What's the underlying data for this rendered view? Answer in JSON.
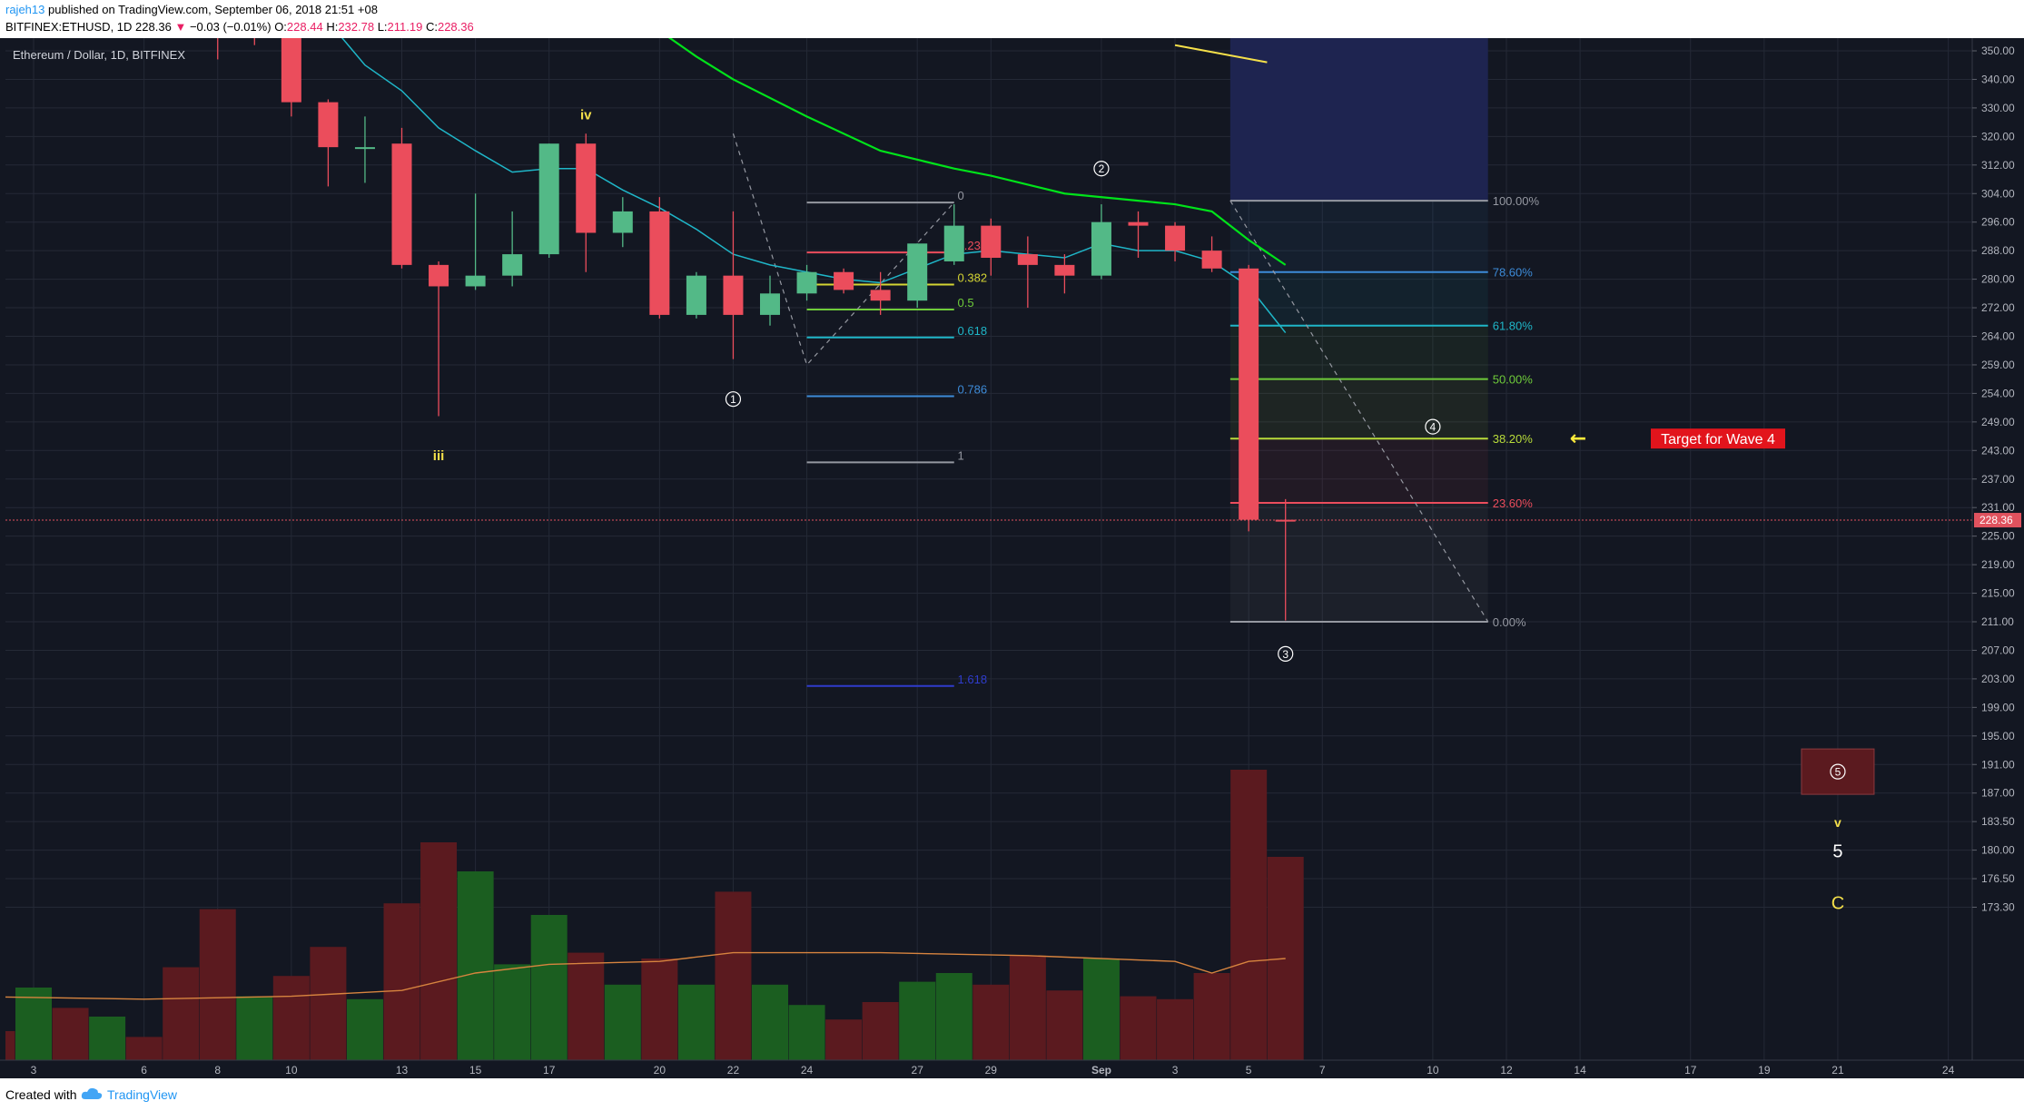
{
  "header": {
    "username": "rajeh13",
    "published": "published on TradingView.com, September 06, 2018 21:51 +08",
    "symbol": "BITFINEX:ETHUSD, 1D",
    "last": "228.36",
    "change_arrow": "▼",
    "change": "−0.03 (−0.01%)",
    "open_label": "O:",
    "open": "228.44",
    "high_label": "H:",
    "high": "232.78",
    "low_label": "L:",
    "low": "211.19",
    "close_label": "C:",
    "close": "228.36"
  },
  "footer": {
    "created": "Created with",
    "brand": "TradingView",
    "logo_icon": "tradingview-cloud-icon"
  },
  "colors": {
    "background": "#131722",
    "grid": "#242936",
    "up": "#53b987",
    "down": "#eb4d5c",
    "vol_up": "#1b5e20",
    "vol_down": "#5b1a1f",
    "ema_green": "#00e31a",
    "ema_cyan": "#1fb6c8",
    "vol_ma": "#d7843f",
    "price_line": "#e0525e",
    "axis_text": "#b2b5be",
    "label_yellow": "#f5e04a",
    "target_red": "#e2141c"
  },
  "chart_data": {
    "type": "candlestick",
    "title": "Ethereum / Dollar, 1D, BITFINEX",
    "current_price": 228.36,
    "y_axis_ticks": [
      "350.00",
      "340.00",
      "330.00",
      "320.00",
      "312.00",
      "304.00",
      "296.00",
      "288.00",
      "280.00",
      "272.00",
      "264.00",
      "259.00",
      "254.00",
      "249.00",
      "243.00",
      "237.00",
      "231.00",
      "225.00",
      "219.00",
      "215.00",
      "211.00",
      "207.00",
      "203.00",
      "199.00",
      "195.00",
      "191.00",
      "187.00",
      "183.50",
      "180.00",
      "176.50",
      "173.30"
    ],
    "y_axis_values": [
      350,
      340,
      330,
      320,
      312,
      304,
      296,
      288,
      280,
      272,
      264,
      259,
      254,
      249,
      243,
      237,
      231,
      225,
      219,
      215,
      211,
      207,
      203,
      199,
      195,
      191,
      187,
      183.5,
      180,
      176.5,
      173.3
    ],
    "x_axis": [
      {
        "label": "3",
        "day": 3
      },
      {
        "label": "6",
        "day": 6
      },
      {
        "label": "8",
        "day": 8
      },
      {
        "label": "10",
        "day": 10
      },
      {
        "label": "13",
        "day": 13
      },
      {
        "label": "15",
        "day": 15
      },
      {
        "label": "17",
        "day": 17
      },
      {
        "label": "20",
        "day": 20
      },
      {
        "label": "22",
        "day": 22
      },
      {
        "label": "24",
        "day": 24
      },
      {
        "label": "27",
        "day": 27
      },
      {
        "label": "29",
        "day": 29
      },
      {
        "label": "Sep",
        "day": 32
      },
      {
        "label": "3",
        "day": 34
      },
      {
        "label": "5",
        "day": 36
      },
      {
        "label": "7",
        "day": 38
      },
      {
        "label": "10",
        "day": 41
      },
      {
        "label": "12",
        "day": 43
      },
      {
        "label": "14",
        "day": 45
      },
      {
        "label": "17",
        "day": 48
      },
      {
        "label": "19",
        "day": 50
      },
      {
        "label": "21",
        "day": 52
      },
      {
        "label": "24",
        "day": 55
      }
    ],
    "candles": [
      {
        "day": 8,
        "o": 362,
        "h": 366,
        "l": 347,
        "c": 360
      },
      {
        "day": 9,
        "o": 363,
        "h": 366,
        "l": 352,
        "c": 362
      },
      {
        "day": 10,
        "o": 358,
        "h": 362,
        "l": 327,
        "c": 332
      },
      {
        "day": 11,
        "o": 332,
        "h": 333,
        "l": 306,
        "c": 317
      },
      {
        "day": 12,
        "o": 317,
        "h": 327,
        "l": 307,
        "c": 317
      },
      {
        "day": 13,
        "o": 318,
        "h": 323,
        "l": 283,
        "c": 284
      },
      {
        "day": 14,
        "o": 284,
        "h": 285,
        "l": 250,
        "c": 278
      },
      {
        "day": 15,
        "o": 278,
        "h": 304,
        "l": 277,
        "c": 281
      },
      {
        "day": 16,
        "o": 281,
        "h": 299,
        "l": 278,
        "c": 287
      },
      {
        "day": 17,
        "o": 287,
        "h": 318,
        "l": 286,
        "c": 318
      },
      {
        "day": 18,
        "o": 318,
        "h": 321,
        "l": 282,
        "c": 293
      },
      {
        "day": 19,
        "o": 293,
        "h": 303,
        "l": 289,
        "c": 299
      },
      {
        "day": 20,
        "o": 299,
        "h": 303,
        "l": 269,
        "c": 270
      },
      {
        "day": 21,
        "o": 270,
        "h": 282,
        "l": 269,
        "c": 281
      },
      {
        "day": 22,
        "o": 281,
        "h": 299,
        "l": 260,
        "c": 270
      },
      {
        "day": 23,
        "o": 270,
        "h": 281,
        "l": 267,
        "c": 276
      },
      {
        "day": 24,
        "o": 276,
        "h": 284,
        "l": 274,
        "c": 282
      },
      {
        "day": 25,
        "o": 282,
        "h": 283,
        "l": 276,
        "c": 277
      },
      {
        "day": 26,
        "o": 277,
        "h": 282,
        "l": 270,
        "c": 274
      },
      {
        "day": 27,
        "o": 274,
        "h": 290,
        "l": 272,
        "c": 290
      },
      {
        "day": 28,
        "o": 285,
        "h": 301,
        "l": 284,
        "c": 295
      },
      {
        "day": 29,
        "o": 295,
        "h": 297,
        "l": 281,
        "c": 286
      },
      {
        "day": 30,
        "o": 287,
        "h": 292,
        "l": 272,
        "c": 284
      },
      {
        "day": 31,
        "o": 284,
        "h": 287,
        "l": 276,
        "c": 281
      },
      {
        "day": 32,
        "o": 281,
        "h": 301,
        "l": 280,
        "c": 296
      },
      {
        "day": 33,
        "o": 296,
        "h": 299,
        "l": 286,
        "c": 295
      },
      {
        "day": 34,
        "o": 295,
        "h": 296,
        "l": 285,
        "c": 288
      },
      {
        "day": 35,
        "o": 288,
        "h": 292,
        "l": 282,
        "c": 283
      },
      {
        "day": 36,
        "o": 283,
        "h": 284,
        "l": 226,
        "c": 228.44
      },
      {
        "day": 37,
        "o": 228.44,
        "h": 232.78,
        "l": 211.19,
        "c": 228.36
      }
    ],
    "volume": [
      {
        "day": 2,
        "v": 10,
        "up": false
      },
      {
        "day": 3,
        "v": 25,
        "up": true
      },
      {
        "day": 4,
        "v": 18,
        "up": false
      },
      {
        "day": 5,
        "v": 15,
        "up": true
      },
      {
        "day": 6,
        "v": 8,
        "up": false
      },
      {
        "day": 7,
        "v": 32,
        "up": false
      },
      {
        "day": 8,
        "v": 52,
        "up": false
      },
      {
        "day": 9,
        "v": 22,
        "up": true
      },
      {
        "day": 10,
        "v": 29,
        "up": false
      },
      {
        "day": 11,
        "v": 39,
        "up": false
      },
      {
        "day": 12,
        "v": 21,
        "up": true
      },
      {
        "day": 13,
        "v": 54,
        "up": false
      },
      {
        "day": 14,
        "v": 75,
        "up": false
      },
      {
        "day": 15,
        "v": 65,
        "up": true
      },
      {
        "day": 16,
        "v": 33,
        "up": true
      },
      {
        "day": 17,
        "v": 50,
        "up": true
      },
      {
        "day": 18,
        "v": 37,
        "up": false
      },
      {
        "day": 19,
        "v": 26,
        "up": true
      },
      {
        "day": 20,
        "v": 35,
        "up": false
      },
      {
        "day": 21,
        "v": 26,
        "up": true
      },
      {
        "day": 22,
        "v": 58,
        "up": false
      },
      {
        "day": 23,
        "v": 26,
        "up": true
      },
      {
        "day": 24,
        "v": 19,
        "up": true
      },
      {
        "day": 25,
        "v": 14,
        "up": false
      },
      {
        "day": 26,
        "v": 20,
        "up": false
      },
      {
        "day": 27,
        "v": 27,
        "up": true
      },
      {
        "day": 28,
        "v": 30,
        "up": true
      },
      {
        "day": 29,
        "v": 26,
        "up": false
      },
      {
        "day": 30,
        "v": 36,
        "up": false
      },
      {
        "day": 31,
        "v": 24,
        "up": false
      },
      {
        "day": 32,
        "v": 35,
        "up": true
      },
      {
        "day": 33,
        "v": 22,
        "up": false
      },
      {
        "day": 34,
        "v": 21,
        "up": false
      },
      {
        "day": 35,
        "v": 30,
        "up": false
      },
      {
        "day": 36,
        "v": 100,
        "up": false
      },
      {
        "day": 37,
        "v": 70,
        "up": false
      }
    ],
    "vol_ma": [
      [
        1,
        22
      ],
      [
        6,
        21
      ],
      [
        10,
        22
      ],
      [
        13,
        24
      ],
      [
        15,
        30
      ],
      [
        17,
        33
      ],
      [
        20,
        34
      ],
      [
        22,
        37
      ],
      [
        26,
        37
      ],
      [
        30,
        36
      ],
      [
        34,
        34
      ],
      [
        35,
        30
      ],
      [
        36,
        34
      ],
      [
        37,
        35
      ]
    ],
    "ema_green": [
      [
        18.5,
        378
      ],
      [
        19.5,
        365
      ],
      [
        20,
        357
      ],
      [
        21,
        348
      ],
      [
        22,
        340
      ],
      [
        24,
        327
      ],
      [
        26,
        316
      ],
      [
        28,
        311
      ],
      [
        29,
        309
      ],
      [
        31,
        304
      ],
      [
        33,
        302
      ],
      [
        34,
        301
      ],
      [
        35,
        299
      ],
      [
        36,
        291
      ],
      [
        37,
        284
      ]
    ],
    "ema_cyan": [
      [
        10.5,
        368
      ],
      [
        12,
        345
      ],
      [
        13,
        336
      ],
      [
        14,
        323
      ],
      [
        15,
        316
      ],
      [
        16,
        310
      ],
      [
        17,
        311
      ],
      [
        18,
        311
      ],
      [
        19,
        305
      ],
      [
        20,
        300
      ],
      [
        21,
        294
      ],
      [
        22,
        287
      ],
      [
        23,
        284
      ],
      [
        24,
        282
      ],
      [
        25,
        280
      ],
      [
        26,
        279
      ],
      [
        27,
        283
      ],
      [
        28,
        287
      ],
      [
        29,
        288
      ],
      [
        30,
        287
      ],
      [
        31,
        286
      ],
      [
        32,
        290
      ],
      [
        33,
        288
      ],
      [
        34,
        288
      ],
      [
        35,
        285
      ],
      [
        36,
        278
      ],
      [
        37,
        265
      ]
    ],
    "fib_retracement": {
      "levels": [
        {
          "label": "0",
          "value": 301.5,
          "color": "#9598a1"
        },
        {
          "label": "0.236",
          "value": 287.5,
          "color": "#eb4d5c"
        },
        {
          "label": "0.382",
          "value": 278.5,
          "color": "#d4d433"
        },
        {
          "label": "0.5",
          "value": 271.5,
          "color": "#6fcc3a"
        },
        {
          "label": "0.618",
          "value": 263.8,
          "color": "#1fb6c8"
        },
        {
          "label": "0.786",
          "value": 253.5,
          "color": "#3d8bd8"
        },
        {
          "label": "1",
          "value": 240.5,
          "color": "#9598a1"
        },
        {
          "label": "1.618",
          "value": 202,
          "color": "#2f3ccc"
        }
      ],
      "from_day": 24,
      "to_day": 28
    },
    "fib_right": {
      "levels": [
        {
          "label": "100.00%",
          "value": 302,
          "color": "#9598a1"
        },
        {
          "label": "78.60%",
          "value": 282,
          "color": "#3d8bd8"
        },
        {
          "label": "61.80%",
          "value": 267,
          "color": "#1fb6c8"
        },
        {
          "label": "50.00%",
          "value": 256.5,
          "color": "#6fcc3a"
        },
        {
          "label": "38.20%",
          "value": 245.5,
          "color": "#b8dc3a"
        },
        {
          "label": "23.60%",
          "value": 232,
          "color": "#eb4d5c"
        },
        {
          "label": "0.00%",
          "value": 211,
          "color": "#9598a1"
        }
      ],
      "from_day": 35.5,
      "to_day": 42.5
    },
    "dashed_lines": [
      [
        [
          22,
          321
        ],
        [
          24,
          259
        ],
        [
          28,
          301.5
        ]
      ],
      [
        [
          35.5,
          302
        ],
        [
          42.5,
          211
        ]
      ]
    ],
    "wave_labels": [
      {
        "text": "iv",
        "day": 18,
        "price": 326,
        "color": "#f5e04a",
        "circled": false
      },
      {
        "text": "iii",
        "day": 14,
        "price": 241,
        "color": "#f5e04a",
        "circled": false
      },
      {
        "text": "1",
        "day": 22,
        "price": 253,
        "color": "#ffffff",
        "circled": true
      },
      {
        "text": "2",
        "day": 32,
        "price": 311,
        "color": "#ffffff",
        "circled": true
      },
      {
        "text": "3",
        "day": 37,
        "price": 206.5,
        "color": "#ffffff",
        "circled": true
      },
      {
        "text": "4",
        "day": 41,
        "price": 248,
        "color": "#ffffff",
        "circled": true
      },
      {
        "text": "5",
        "day": 52,
        "price": 190,
        "color": "#ffffff",
        "circled": true
      }
    ],
    "annotations": {
      "target_text": "Target for Wave 4",
      "arrow": "←",
      "small_v": "v",
      "big_5": "5",
      "big_c": "C"
    },
    "yellow_segment": [
      [
        34,
        352
      ],
      [
        36.5,
        346
      ]
    ]
  }
}
